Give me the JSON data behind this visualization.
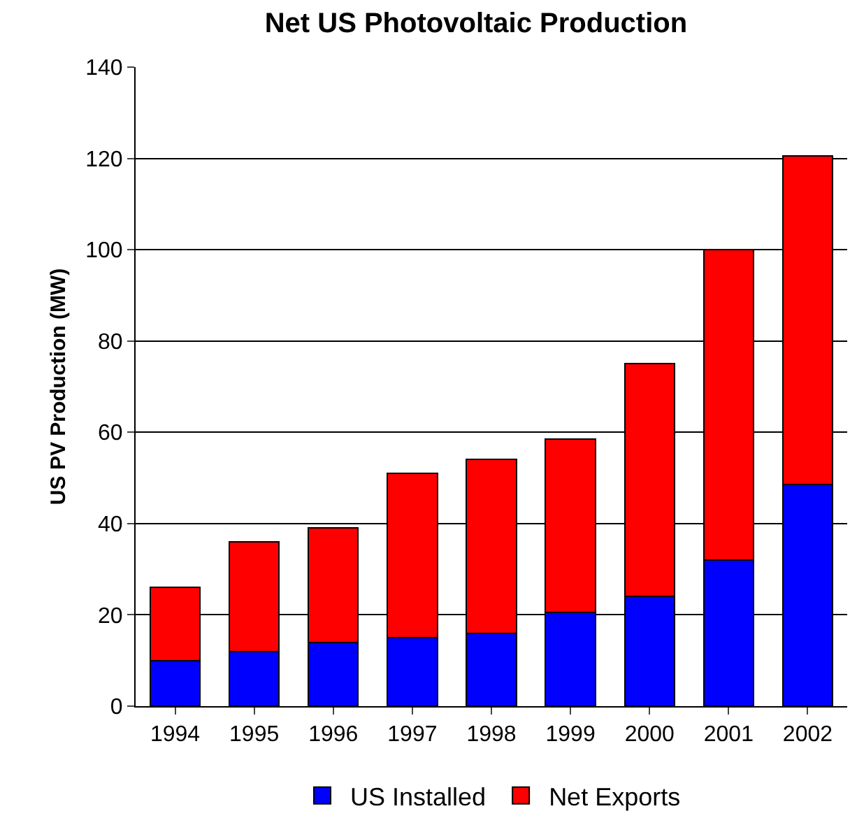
{
  "chart_data": {
    "type": "bar",
    "title": "Net US Photovoltaic Production",
    "ylabel": "US PV Production (MW)",
    "categories": [
      "1994",
      "1995",
      "1996",
      "1997",
      "1998",
      "1999",
      "2000",
      "2001",
      "2002"
    ],
    "stacked": true,
    "series": [
      {
        "name": "US Installed",
        "color": "#0000ff",
        "values": [
          10,
          12,
          14,
          15,
          16,
          20.5,
          24,
          32,
          48.5
        ]
      },
      {
        "name": "Net Exports",
        "color": "#ff0000",
        "values": [
          16,
          24,
          25,
          36,
          38,
          38,
          51,
          68,
          72
        ]
      }
    ],
    "ylim": [
      0,
      140
    ],
    "yticks": [
      0,
      20,
      40,
      60,
      80,
      100,
      120,
      140
    ],
    "grid": "y",
    "legend": "bottom"
  }
}
